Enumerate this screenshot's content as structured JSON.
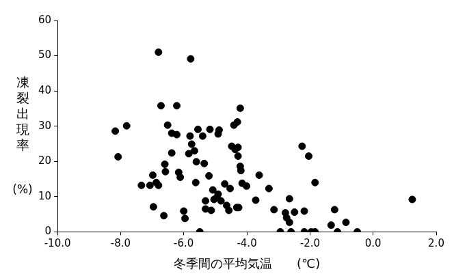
{
  "chart_data": {
    "type": "scatter",
    "x_label": "冬季間の平均気温　　(℃)",
    "y_label": "凍裂出現率",
    "y_label_unit": "(%)",
    "x": [
      -8.17,
      -8.08,
      -7.81,
      -7.34,
      -7.07,
      -6.98,
      -6.96,
      -6.87,
      -6.8,
      -6.8,
      -6.72,
      -6.63,
      -6.6,
      -6.58,
      -6.51,
      -6.38,
      -6.38,
      -6.22,
      -6.22,
      -6.16,
      -6.11,
      -6.0,
      -5.96,
      -5.84,
      -5.8,
      -5.78,
      -5.75,
      -5.66,
      -5.62,
      -5.6,
      -5.55,
      -5.49,
      -5.4,
      -5.35,
      -5.31,
      -5.31,
      -5.2,
      -5.17,
      -5.13,
      -5.08,
      -5.04,
      -4.95,
      -4.88,
      -4.91,
      -4.91,
      -4.82,
      -4.7,
      -4.64,
      -4.57,
      -4.53,
      -4.48,
      -4.41,
      -4.37,
      -4.32,
      -4.3,
      -4.28,
      -4.26,
      -4.28,
      -4.21,
      -4.21,
      -4.19,
      -4.15,
      -4.01,
      -3.72,
      -3.61,
      -3.3,
      -3.14,
      -2.94,
      -2.78,
      -2.74,
      -2.65,
      -2.65,
      -2.6,
      -2.49,
      -2.25,
      -2.18,
      -2.18,
      -2.04,
      -1.96,
      -1.84,
      -1.84,
      -1.33,
      -1.22,
      -1.13,
      -0.86,
      -0.5,
      1.24
    ],
    "values": [
      28.6,
      21.3,
      30.1,
      13.2,
      13.2,
      16.1,
      7.1,
      14.0,
      13.2,
      51.0,
      35.8,
      4.6,
      19.2,
      17.1,
      30.3,
      28.0,
      22.4,
      35.8,
      27.6,
      16.9,
      15.5,
      5.9,
      3.8,
      22.2,
      27.2,
      49.1,
      24.9,
      23.0,
      14.0,
      19.9,
      29.1,
      0,
      27.2,
      19.4,
      8.8,
      6.5,
      15.9,
      29.1,
      6.1,
      11.9,
      9.2,
      9.8,
      28.9,
      27.8,
      10.7,
      8.8,
      13.6,
      7.5,
      6.1,
      12.3,
      24.3,
      30.3,
      23.4,
      6.9,
      31.2,
      24.0,
      6.9,
      21.5,
      35.1,
      18.6,
      17.4,
      13.8,
      13.0,
      9.0,
      16.1,
      12.3,
      6.3,
      0,
      5.4,
      4.0,
      9.4,
      2.7,
      0,
      5.6,
      24.3,
      5.9,
      0,
      21.5,
      0,
      0,
      14.0,
      1.9,
      6.3,
      0,
      2.7,
      0,
      9.2
    ],
    "color": "#000000",
    "marker": "circle",
    "xlim": [
      -10,
      2
    ],
    "xticks": [
      {
        "value": -10,
        "label": "-10.0"
      },
      {
        "value": -8,
        "label": "-8.0"
      },
      {
        "value": -6,
        "label": "-6.0"
      },
      {
        "value": -4,
        "label": "-4.0"
      },
      {
        "value": -2,
        "label": "-2.0"
      },
      {
        "value": 0,
        "label": "0.0"
      },
      {
        "value": 2,
        "label": "2.0"
      }
    ],
    "ylim": [
      0,
      60
    ],
    "yticks": [
      0,
      10,
      20,
      30,
      40,
      50,
      60
    ],
    "grid": false
  }
}
